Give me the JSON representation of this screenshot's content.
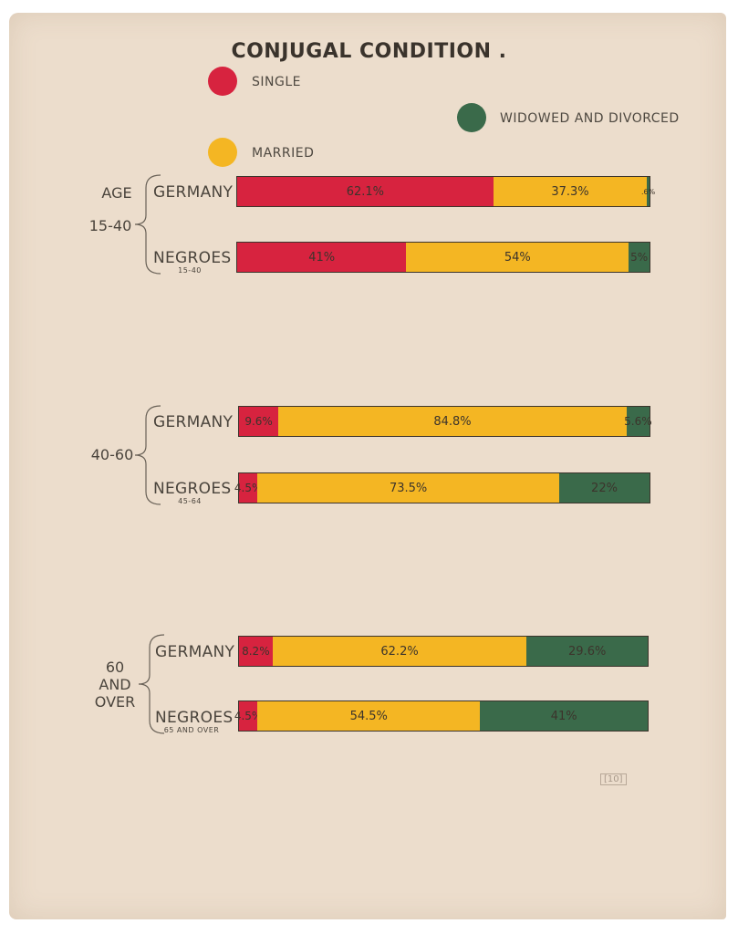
{
  "chart_data": {
    "type": "bar",
    "orientation": "horizontal-stacked",
    "title": "CONJUGAL CONDITION .",
    "legend": [
      {
        "name": "SINGLE",
        "color": "#d7233f"
      },
      {
        "name": "MARRIED",
        "color": "#f4b623"
      },
      {
        "name": "WIDOWED AND DIVORCED",
        "color": "#3a6a4a"
      }
    ],
    "groups": [
      {
        "label_lines": [
          "AGE",
          "15-40"
        ],
        "rows": [
          {
            "name": "GERMANY",
            "sub": "",
            "values": [
              62.1,
              37.3,
              0.6
            ],
            "labels": [
              "62.1%",
              "37.3%",
              ".6%"
            ]
          },
          {
            "name": "NEGROES",
            "sub": "15-40",
            "values": [
              41,
              54,
              5
            ],
            "labels": [
              "41%",
              "54%",
              "5%"
            ]
          }
        ]
      },
      {
        "label_lines": [
          "40-60"
        ],
        "rows": [
          {
            "name": "GERMANY",
            "sub": "",
            "values": [
              9.6,
              84.8,
              5.6
            ],
            "labels": [
              "9.6%",
              "84.8%",
              "5.6%"
            ]
          },
          {
            "name": "NEGROES",
            "sub": "45-64",
            "values": [
              4.5,
              73.5,
              22
            ],
            "labels": [
              "4.5%",
              "73.5%",
              "22%"
            ]
          }
        ]
      },
      {
        "label_lines": [
          "60",
          "AND",
          "OVER"
        ],
        "rows": [
          {
            "name": "GERMANY",
            "sub": "",
            "values": [
              8.2,
              62.2,
              29.6
            ],
            "labels": [
              "8.2%",
              "62.2%",
              "29.6%"
            ]
          },
          {
            "name": "NEGROES",
            "sub": "65 AND OVER",
            "values": [
              4.5,
              54.5,
              41
            ],
            "labels": [
              "4.5%",
              "54.5%",
              "41%"
            ]
          }
        ]
      }
    ]
  },
  "page_number": "[10]"
}
